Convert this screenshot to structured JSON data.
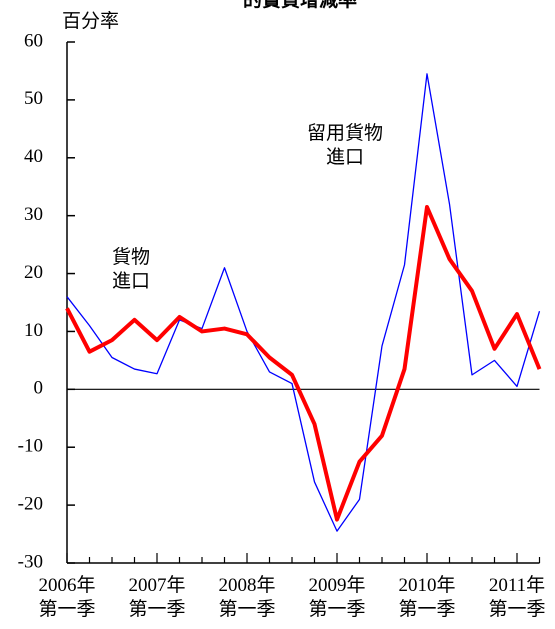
{
  "chart_data": {
    "type": "line",
    "title": "的實質增減率",
    "y_label": "百分率",
    "categories": [
      "2006年\n第一季",
      null,
      null,
      null,
      "2007年\n第一季",
      null,
      null,
      null,
      "2008年\n第一季",
      null,
      null,
      null,
      "2009年\n第一季",
      null,
      null,
      null,
      "2010年\n第一季",
      null,
      null,
      null,
      "2011年\n第一季",
      null
    ],
    "series": [
      {
        "name": "貨物\n進口",
        "color": "#0000ff",
        "values": [
          16,
          11,
          5.5,
          3.5,
          2.7,
          12,
          10.5,
          21,
          10,
          3,
          1,
          -16,
          -24.5,
          -19,
          7.5,
          21.5,
          54.5,
          32,
          2.5,
          5,
          0.5,
          13.5
        ]
      },
      {
        "name": "留用貨物\n進口",
        "color": "#ff0000",
        "values": [
          14,
          6.5,
          8.5,
          12,
          8.5,
          12.5,
          10,
          10.5,
          9.5,
          5.5,
          2.5,
          -6,
          -22.5,
          -12.5,
          -8,
          3.5,
          31.5,
          22.5,
          17,
          7,
          13,
          3.5
        ]
      }
    ],
    "ylim": [
      -30,
      60
    ],
    "yticks": [
      -30,
      -20,
      -10,
      0,
      10,
      20,
      30,
      40,
      50,
      60
    ]
  }
}
